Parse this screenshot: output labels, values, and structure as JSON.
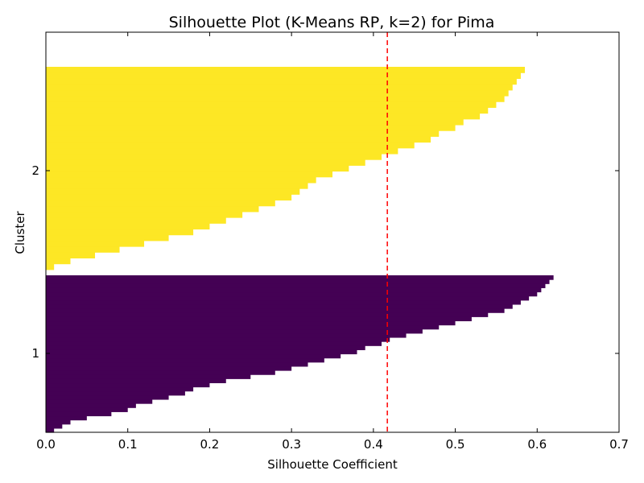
{
  "chart_data": {
    "type": "bar",
    "orientation": "horizontal",
    "title": "Silhouette Plot (K-Means RP, k=2) for Pima",
    "xlabel": "Silhouette Coefficient",
    "ylabel": "Cluster",
    "xlim": [
      0.0,
      0.7
    ],
    "xticks": [
      "0.0",
      "0.1",
      "0.2",
      "0.3",
      "0.4",
      "0.5",
      "0.6",
      "0.7"
    ],
    "yticks": [
      "1",
      "2"
    ],
    "grid": false,
    "legend": "none",
    "reference_line": {
      "x": 0.417,
      "color": "#ff0000",
      "style": "dashed",
      "meaning": "average silhouette coefficient"
    },
    "series": [
      {
        "cluster": "1",
        "color": "#440154",
        "profile_note": "silhouette values sorted in ascending order from bottom to top",
        "values": [
          0.01,
          0.02,
          0.03,
          0.05,
          0.08,
          0.1,
          0.11,
          0.13,
          0.15,
          0.17,
          0.18,
          0.2,
          0.22,
          0.25,
          0.28,
          0.3,
          0.32,
          0.34,
          0.36,
          0.38,
          0.39,
          0.41,
          0.42,
          0.44,
          0.46,
          0.48,
          0.5,
          0.52,
          0.54,
          0.56,
          0.57,
          0.58,
          0.59,
          0.6,
          0.605,
          0.61,
          0.615,
          0.62
        ]
      },
      {
        "cluster": "2",
        "color": "#fde725",
        "profile_note": "silhouette values sorted in ascending order from bottom to top",
        "values": [
          0.0,
          0.01,
          0.03,
          0.06,
          0.09,
          0.12,
          0.15,
          0.18,
          0.2,
          0.22,
          0.24,
          0.26,
          0.28,
          0.3,
          0.31,
          0.32,
          0.33,
          0.35,
          0.37,
          0.39,
          0.41,
          0.43,
          0.45,
          0.47,
          0.48,
          0.5,
          0.51,
          0.53,
          0.54,
          0.55,
          0.56,
          0.565,
          0.57,
          0.575,
          0.58,
          0.585
        ]
      }
    ]
  }
}
